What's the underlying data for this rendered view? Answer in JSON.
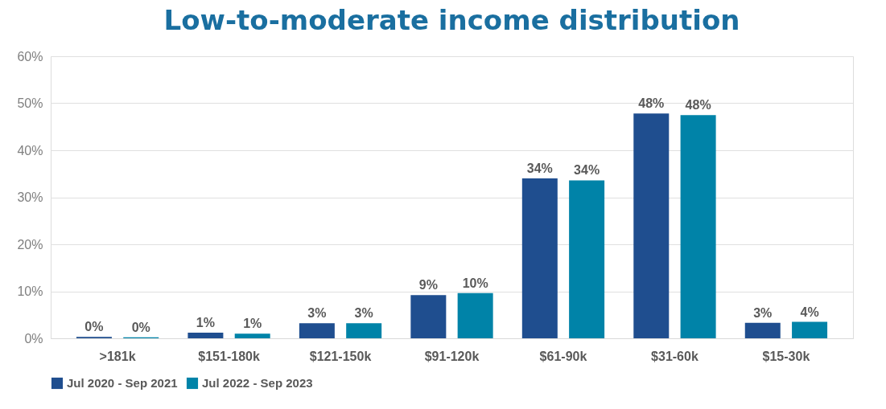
{
  "chart_data": {
    "type": "bar",
    "title": "Low-to-moderate income distribution",
    "categories": [
      ">181k",
      "$151-180k",
      "$121-150k",
      "$91-120k",
      "$61-90k",
      "$31-60k",
      "$15-30k"
    ],
    "series": [
      {
        "name": "Jul 2020 - Sep 2021",
        "color": "#1f4e8f",
        "values": [
          0.3,
          1.2,
          3.2,
          9.2,
          34.0,
          47.8,
          3.3
        ],
        "value_labels": [
          "0%",
          "1%",
          "3%",
          "9%",
          "34%",
          "48%",
          "3%"
        ]
      },
      {
        "name": "Jul 2022 - Sep 2023",
        "color": "#0083a8",
        "values": [
          0.2,
          1.0,
          3.2,
          9.6,
          33.6,
          47.5,
          3.5
        ],
        "value_labels": [
          "0%",
          "1%",
          "3%",
          "10%",
          "34%",
          "48%",
          "4%"
        ]
      }
    ],
    "ylim": [
      0,
      60
    ],
    "yticks": [
      {
        "value": 0,
        "label": "0%"
      },
      {
        "value": 10,
        "label": "10%"
      },
      {
        "value": 20,
        "label": "20%"
      },
      {
        "value": 30,
        "label": "30%"
      },
      {
        "value": 40,
        "label": "40%"
      },
      {
        "value": 50,
        "label": "50%"
      },
      {
        "value": 60,
        "label": "60%"
      }
    ],
    "grid": "y",
    "legend": "bottom"
  }
}
